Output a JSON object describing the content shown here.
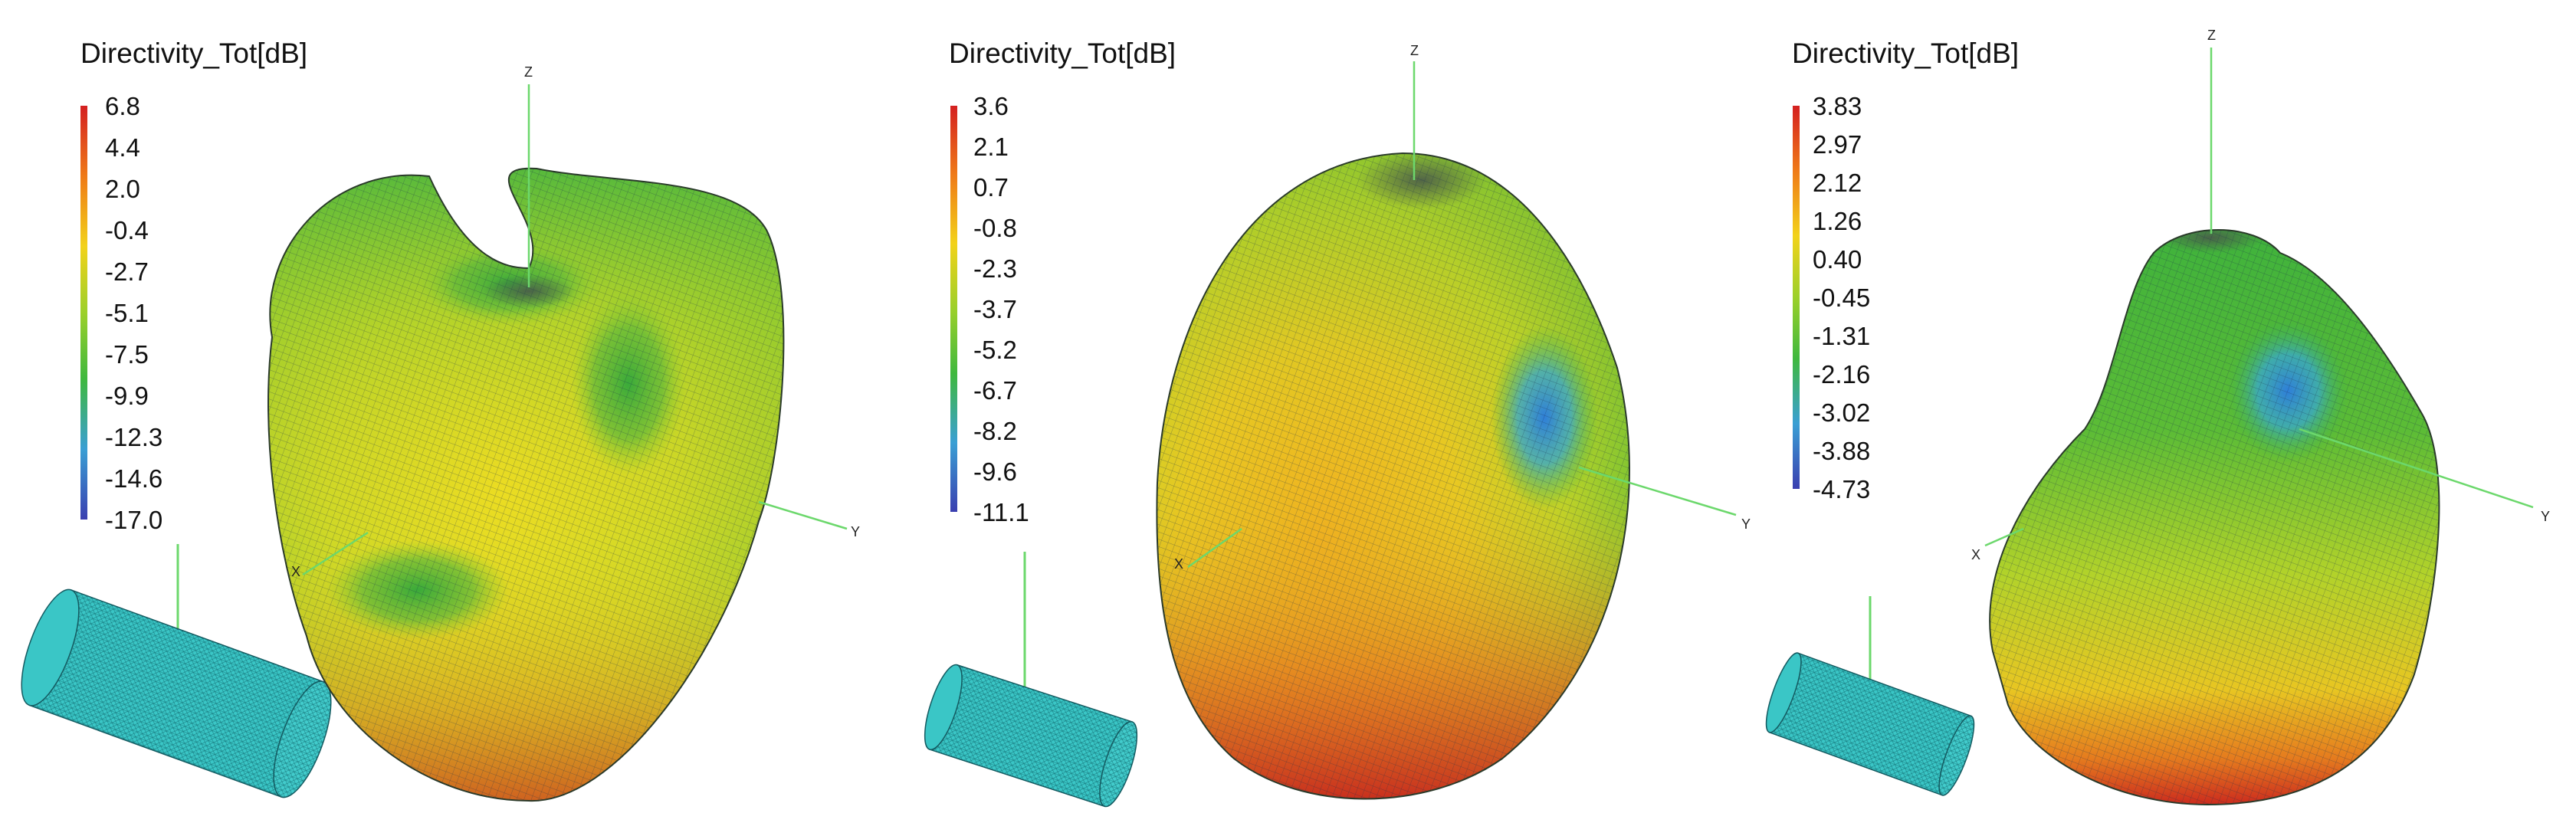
{
  "chart_data": [
    {
      "type": "3d-surface",
      "title": "Directivity_Tot[dB]",
      "colorbar_ticks": [
        "6.8",
        "4.4",
        "2.0",
        "-0.4",
        "-2.7",
        "-5.1",
        "-7.5",
        "-9.9",
        "-12.3",
        "-14.6",
        "-17.0"
      ],
      "colorbar_range": [
        -17.0,
        6.8
      ],
      "axes": {
        "x": "X",
        "y": "Y",
        "z": "Z"
      }
    },
    {
      "type": "3d-surface",
      "title": "Directivity_Tot[dB]",
      "colorbar_ticks": [
        "3.6",
        "2.1",
        "0.7",
        "-0.8",
        "-2.3",
        "-3.7",
        "-5.2",
        "-6.7",
        "-8.2",
        "-9.6",
        "-11.1"
      ],
      "colorbar_range": [
        -11.1,
        3.6
      ],
      "axes": {
        "x": "X",
        "y": "Y",
        "z": "Z"
      }
    },
    {
      "type": "3d-surface",
      "title": "Directivity_Tot[dB]",
      "colorbar_ticks": [
        "3.83",
        "2.97",
        "2.12",
        "1.26",
        "0.40",
        "-0.45",
        "-1.31",
        "-2.16",
        "-3.02",
        "-3.88",
        "-4.73"
      ],
      "colorbar_range": [
        -4.73,
        3.83
      ],
      "axes": {
        "x": "X",
        "y": "Y",
        "z": "Z"
      }
    }
  ],
  "colorscale": [
    "#d42020",
    "#ef7a18",
    "#f2d21a",
    "#9cd02a",
    "#3fb83e",
    "#3a9fd4",
    "#3a3fb0"
  ]
}
